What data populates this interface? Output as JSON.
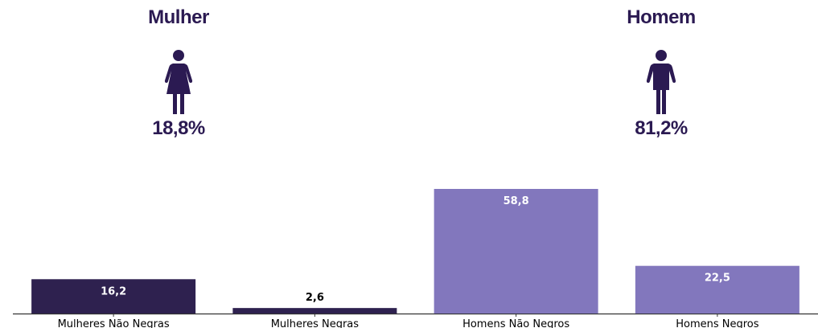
{
  "groups": [
    {
      "title": "Mulher",
      "percent": "18,8%",
      "icon": "female-icon",
      "color": "#2b1a52"
    },
    {
      "title": "Homem",
      "percent": "81,2%",
      "icon": "male-icon",
      "color": "#2b1a52"
    }
  ],
  "chart_data": {
    "type": "bar",
    "categories": [
      "Mulheres Não Negras",
      "Mulheres Negras",
      "Homens Não Negros",
      "Homens Negros"
    ],
    "values": [
      16.2,
      2.6,
      58.8,
      22.5
    ],
    "value_labels": [
      "16,2",
      "2,6",
      "58,8",
      "22,5"
    ],
    "colors": [
      "#2e214f",
      "#2e214f",
      "#8277bd",
      "#8277bd"
    ],
    "ylim": [
      0,
      60
    ],
    "grid": false
  }
}
